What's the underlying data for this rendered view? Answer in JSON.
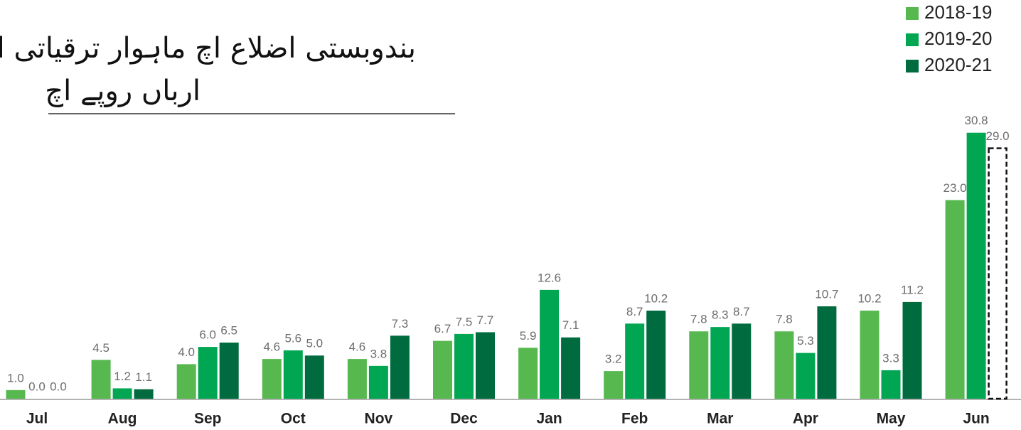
{
  "chart_data": {
    "type": "bar",
    "title": "بندوبستی اضلاع اچ ماہوار ترقیاتی اخراجات",
    "subtitle": "ارباں روپے اچ",
    "categories": [
      "Jul",
      "Aug",
      "Sep",
      "Oct",
      "Nov",
      "Dec",
      "Jan",
      "Feb",
      "Mar",
      "Apr",
      "May",
      "Jun"
    ],
    "ylim": [
      0,
      33
    ],
    "legend": "top-right",
    "series": [
      {
        "name": "2018-19",
        "color": "#56b84f",
        "values": [
          1.0,
          4.5,
          4.0,
          4.6,
          4.6,
          6.7,
          5.9,
          3.2,
          7.8,
          7.8,
          10.2,
          23.0
        ],
        "value_labels": [
          "1.0",
          "4.5",
          "4.0",
          "4.6",
          "4.6",
          "6.7",
          "5.9",
          "3.2",
          "7.8",
          "7.8",
          "10.2",
          "23.0"
        ]
      },
      {
        "name": "2019-20",
        "color": "#00a651",
        "values": [
          0.0,
          1.2,
          6.0,
          5.6,
          3.8,
          7.5,
          12.6,
          8.7,
          8.3,
          5.3,
          3.3,
          30.8
        ],
        "value_labels": [
          "0.0",
          "1.2",
          "6.0",
          "5.6",
          "3.8",
          "7.5",
          "12.6",
          "8.7",
          "8.3",
          "5.3",
          "3.3",
          "30.8"
        ]
      },
      {
        "name": "2020-21",
        "color": "#006b3f",
        "values": [
          0.0,
          1.1,
          6.5,
          5.0,
          7.3,
          7.7,
          7.1,
          10.2,
          8.7,
          10.7,
          11.2,
          29.0
        ],
        "value_labels": [
          "0.0",
          "1.1",
          "6.5",
          "5.0",
          "7.3",
          "7.7",
          "7.1",
          "10.2",
          "8.7",
          "10.7",
          "11.2",
          "29.0"
        ],
        "dashed": [
          11
        ]
      }
    ]
  }
}
